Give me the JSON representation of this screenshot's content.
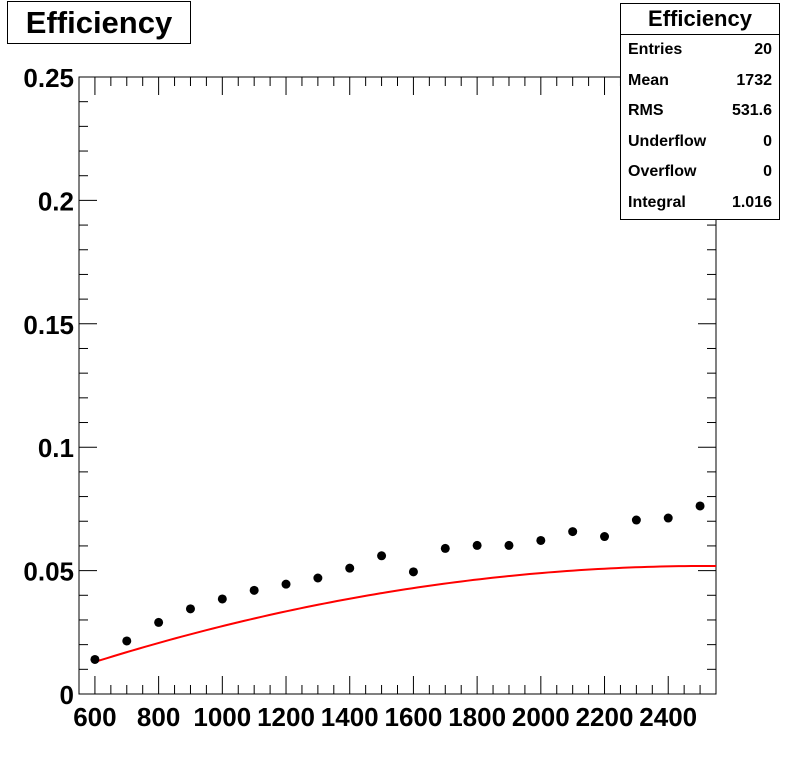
{
  "title": "Efficiency",
  "stats": {
    "title": "Efficiency",
    "rows": [
      {
        "key": "Entries",
        "value": "20"
      },
      {
        "key": "Mean",
        "value": "1732"
      },
      {
        "key": "RMS",
        "value": "531.6"
      },
      {
        "key": "Underflow",
        "value": "0"
      },
      {
        "key": "Overflow",
        "value": "0"
      },
      {
        "key": "Integral",
        "value": "1.016"
      }
    ]
  },
  "chart_data": {
    "type": "scatter",
    "title": "Efficiency",
    "xlim": [
      550,
      2550
    ],
    "ylim": [
      0,
      0.25
    ],
    "x_ticks": [
      600,
      800,
      1000,
      1200,
      1400,
      1600,
      1800,
      2000,
      2200,
      2400
    ],
    "x_tick_labels": [
      "600",
      "800",
      "1000",
      "1200",
      "1400",
      "1600",
      "1800",
      "2000",
      "2200",
      "2400"
    ],
    "y_ticks": [
      0,
      0.05,
      0.1,
      0.15,
      0.2,
      0.25
    ],
    "y_tick_labels": [
      "0",
      "0.05",
      "0.1",
      "0.15",
      "0.2",
      "0.25"
    ],
    "points": {
      "x": [
        600,
        700,
        800,
        900,
        1000,
        1100,
        1200,
        1300,
        1400,
        1500,
        1600,
        1700,
        1800,
        1900,
        2000,
        2100,
        2200,
        2300,
        2400,
        2500
      ],
      "y": [
        0.014,
        0.0215,
        0.029,
        0.0345,
        0.0385,
        0.042,
        0.0445,
        0.047,
        0.051,
        0.056,
        0.0495,
        0.059,
        0.0602,
        0.0602,
        0.0622,
        0.0658,
        0.0638,
        0.0705,
        0.0713,
        0.0762
      ]
    },
    "fit": {
      "x_range": [
        600,
        2550
      ],
      "coefficients": [
        -0.015,
        5.3e-05,
        -1.05e-08
      ],
      "color": "#ff0000"
    },
    "marker_color": "#000000"
  }
}
